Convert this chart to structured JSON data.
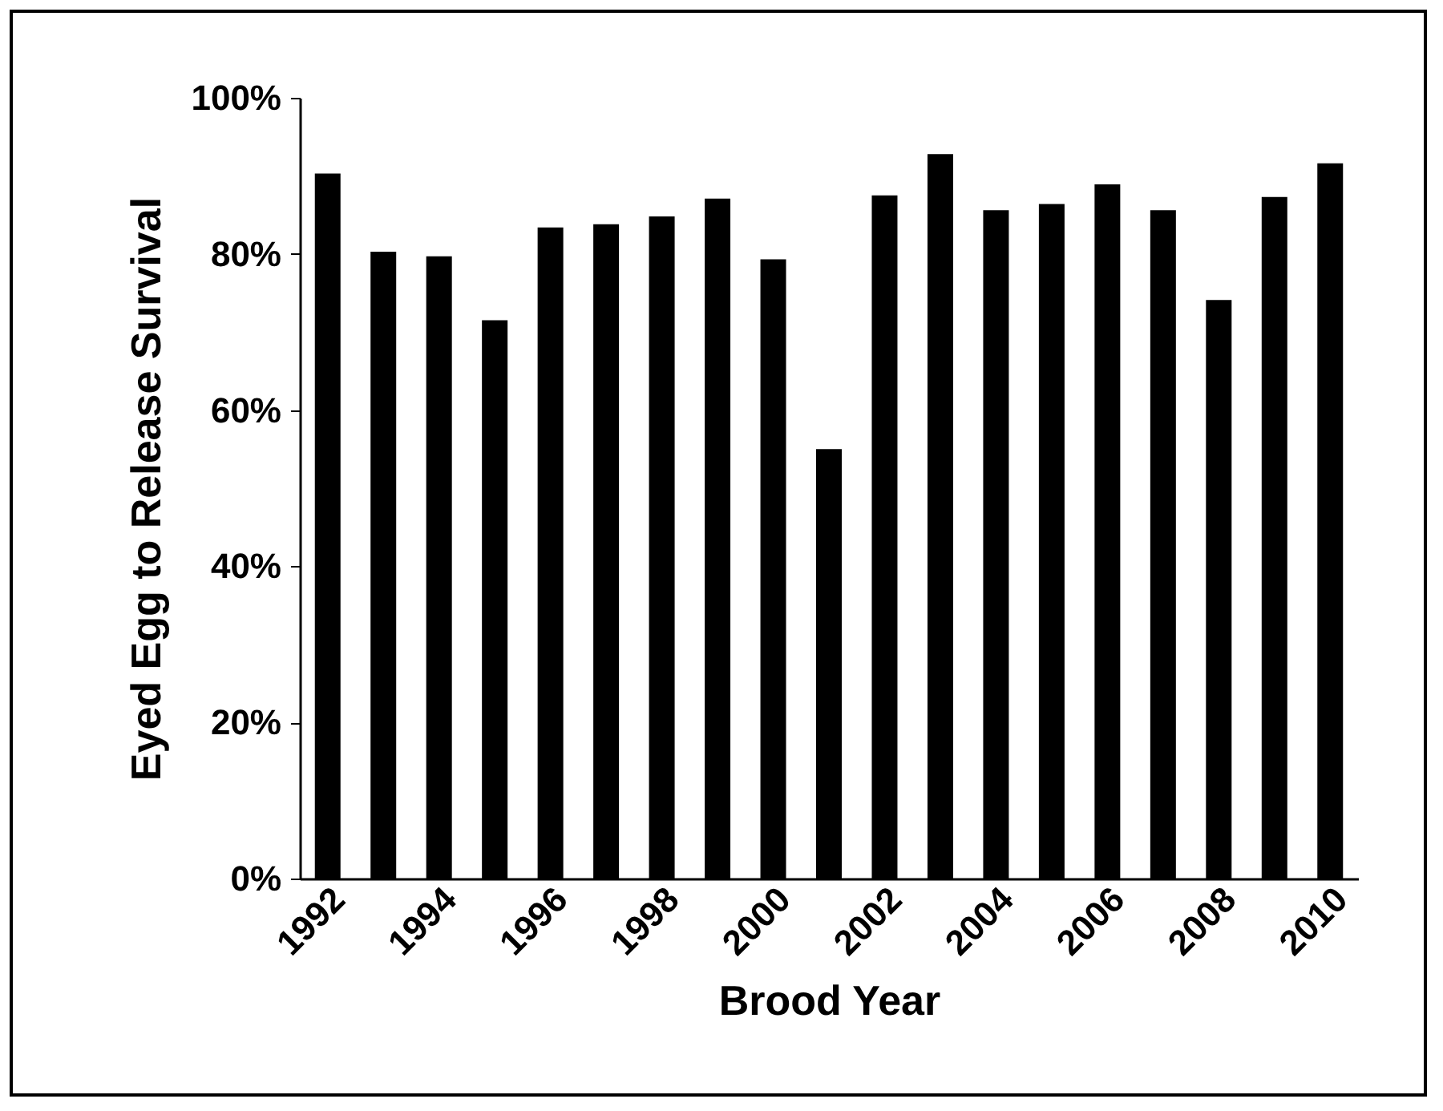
{
  "chart_data": {
    "type": "bar",
    "xlabel": "Brood Year",
    "ylabel": "Eyed  Egg to Release Survival",
    "categories": [
      "1992",
      null,
      "1994",
      null,
      "1996",
      null,
      "1998",
      null,
      "2000",
      null,
      "2002",
      null,
      "2004",
      null,
      "2006",
      null,
      "2008",
      null,
      "2010"
    ],
    "values": [
      90.3,
      80.3,
      79.7,
      71.5,
      83.4,
      83.8,
      84.8,
      87.1,
      79.3,
      55.0,
      87.5,
      92.8,
      85.6,
      86.4,
      88.9,
      85.6,
      74.1,
      87.3,
      91.6
    ],
    "color": "#000000",
    "ylim": [
      0,
      100
    ],
    "yticks": [
      {
        "value": 0,
        "label": "0%"
      },
      {
        "value": 20,
        "label": "20%"
      },
      {
        "value": 40,
        "label": "40%"
      },
      {
        "value": 60,
        "label": "60%"
      },
      {
        "value": 80,
        "label": "80%"
      },
      {
        "value": 100,
        "label": "100%"
      }
    ],
    "grid": false
  }
}
